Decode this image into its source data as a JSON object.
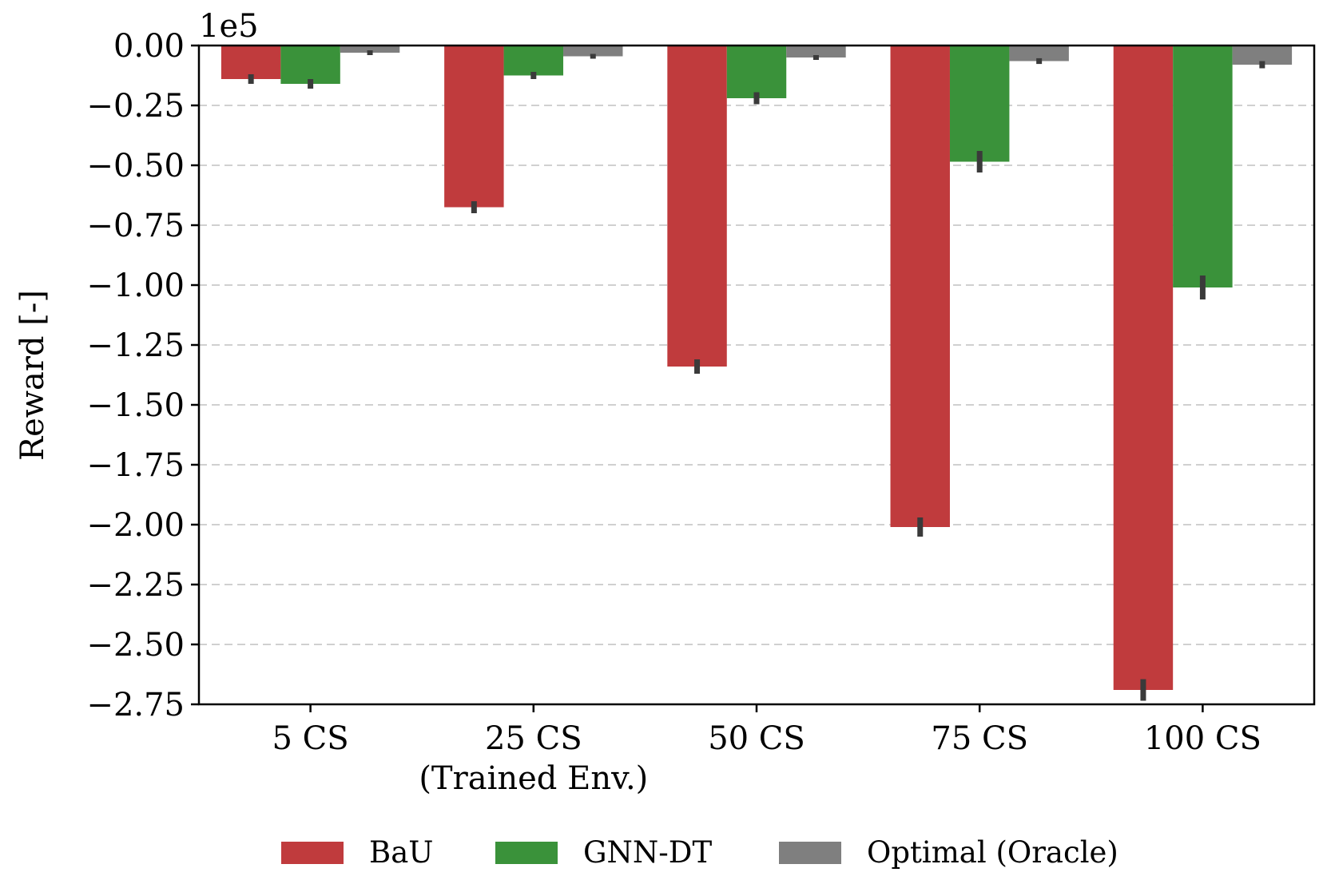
{
  "chart_data": {
    "type": "bar",
    "title": "",
    "xlabel": "",
    "ylabel": "Reward [-]",
    "offset_label": "1e5",
    "ylim": [
      -2.75,
      0.0
    ],
    "yticks": [
      0.0,
      -0.25,
      -0.5,
      -0.75,
      -1.0,
      -1.25,
      -1.5,
      -1.75,
      -2.0,
      -2.25,
      -2.5,
      -2.75
    ],
    "ytick_labels": [
      "0.00",
      "−0.25",
      "−0.50",
      "−0.75",
      "−1.00",
      "−1.25",
      "−1.50",
      "−1.75",
      "−2.00",
      "−2.25",
      "−2.50",
      "−2.75"
    ],
    "grid": true,
    "categories": [
      {
        "label": "5 CS",
        "sublabel": ""
      },
      {
        "label": "25 CS",
        "sublabel": "(Trained Env.)"
      },
      {
        "label": "50 CS",
        "sublabel": ""
      },
      {
        "label": "75 CS",
        "sublabel": ""
      },
      {
        "label": "100 CS",
        "sublabel": ""
      }
    ],
    "series": [
      {
        "name": "BaU",
        "color": "#c03b3d",
        "values": [
          -0.14,
          -0.675,
          -1.34,
          -2.01,
          -2.69
        ],
        "err": [
          0.02,
          0.025,
          0.03,
          0.04,
          0.045
        ]
      },
      {
        "name": "GNN-DT",
        "color": "#3a923a",
        "values": [
          -0.16,
          -0.125,
          -0.22,
          -0.485,
          -1.01
        ],
        "err": [
          0.02,
          0.015,
          0.025,
          0.045,
          0.05
        ]
      },
      {
        "name": "Optimal (Oracle)",
        "color": "#7f7f7f",
        "values": [
          -0.03,
          -0.045,
          -0.05,
          -0.065,
          -0.08
        ],
        "err": [
          0.01,
          0.01,
          0.01,
          0.012,
          0.015
        ]
      }
    ],
    "legend_position": "bottom-center"
  }
}
